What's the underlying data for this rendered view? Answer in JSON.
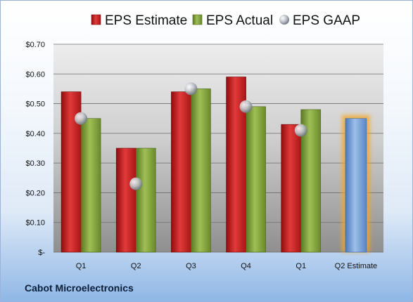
{
  "chart_data": {
    "type": "bar",
    "categories": [
      "Q1",
      "Q2",
      "Q3",
      "Q4",
      "Q1",
      "Q2 Estimate"
    ],
    "series": [
      {
        "name": "EPS Estimate",
        "values": [
          0.54,
          0.35,
          0.54,
          0.59,
          0.43,
          null
        ]
      },
      {
        "name": "EPS Actual",
        "values": [
          0.45,
          0.35,
          0.55,
          0.49,
          0.48,
          null
        ]
      },
      {
        "name": "EPS GAAP",
        "values": [
          0.45,
          0.23,
          0.55,
          0.49,
          0.41,
          null
        ]
      }
    ],
    "projection": {
      "category": "Q2 Estimate",
      "value": 0.45
    },
    "ylim": [
      0,
      0.7
    ],
    "yticks": [
      0,
      0.1,
      0.2,
      0.3,
      0.4,
      0.5,
      0.6,
      0.7
    ],
    "ytick_labels": [
      "$-",
      "$0.10",
      "$0.20",
      "$0.30",
      "$0.40",
      "$0.50",
      "$0.60",
      "$0.70"
    ],
    "grid": true,
    "legend_position": "top",
    "colors": {
      "estimate": "#d42a2a",
      "actual": "#8aab3f",
      "gaap": "#b9bec6",
      "projection": "#7ea6dc",
      "projection_glow": "#f5a623"
    }
  },
  "footer": {
    "company": "Cabot Microelectronics"
  }
}
